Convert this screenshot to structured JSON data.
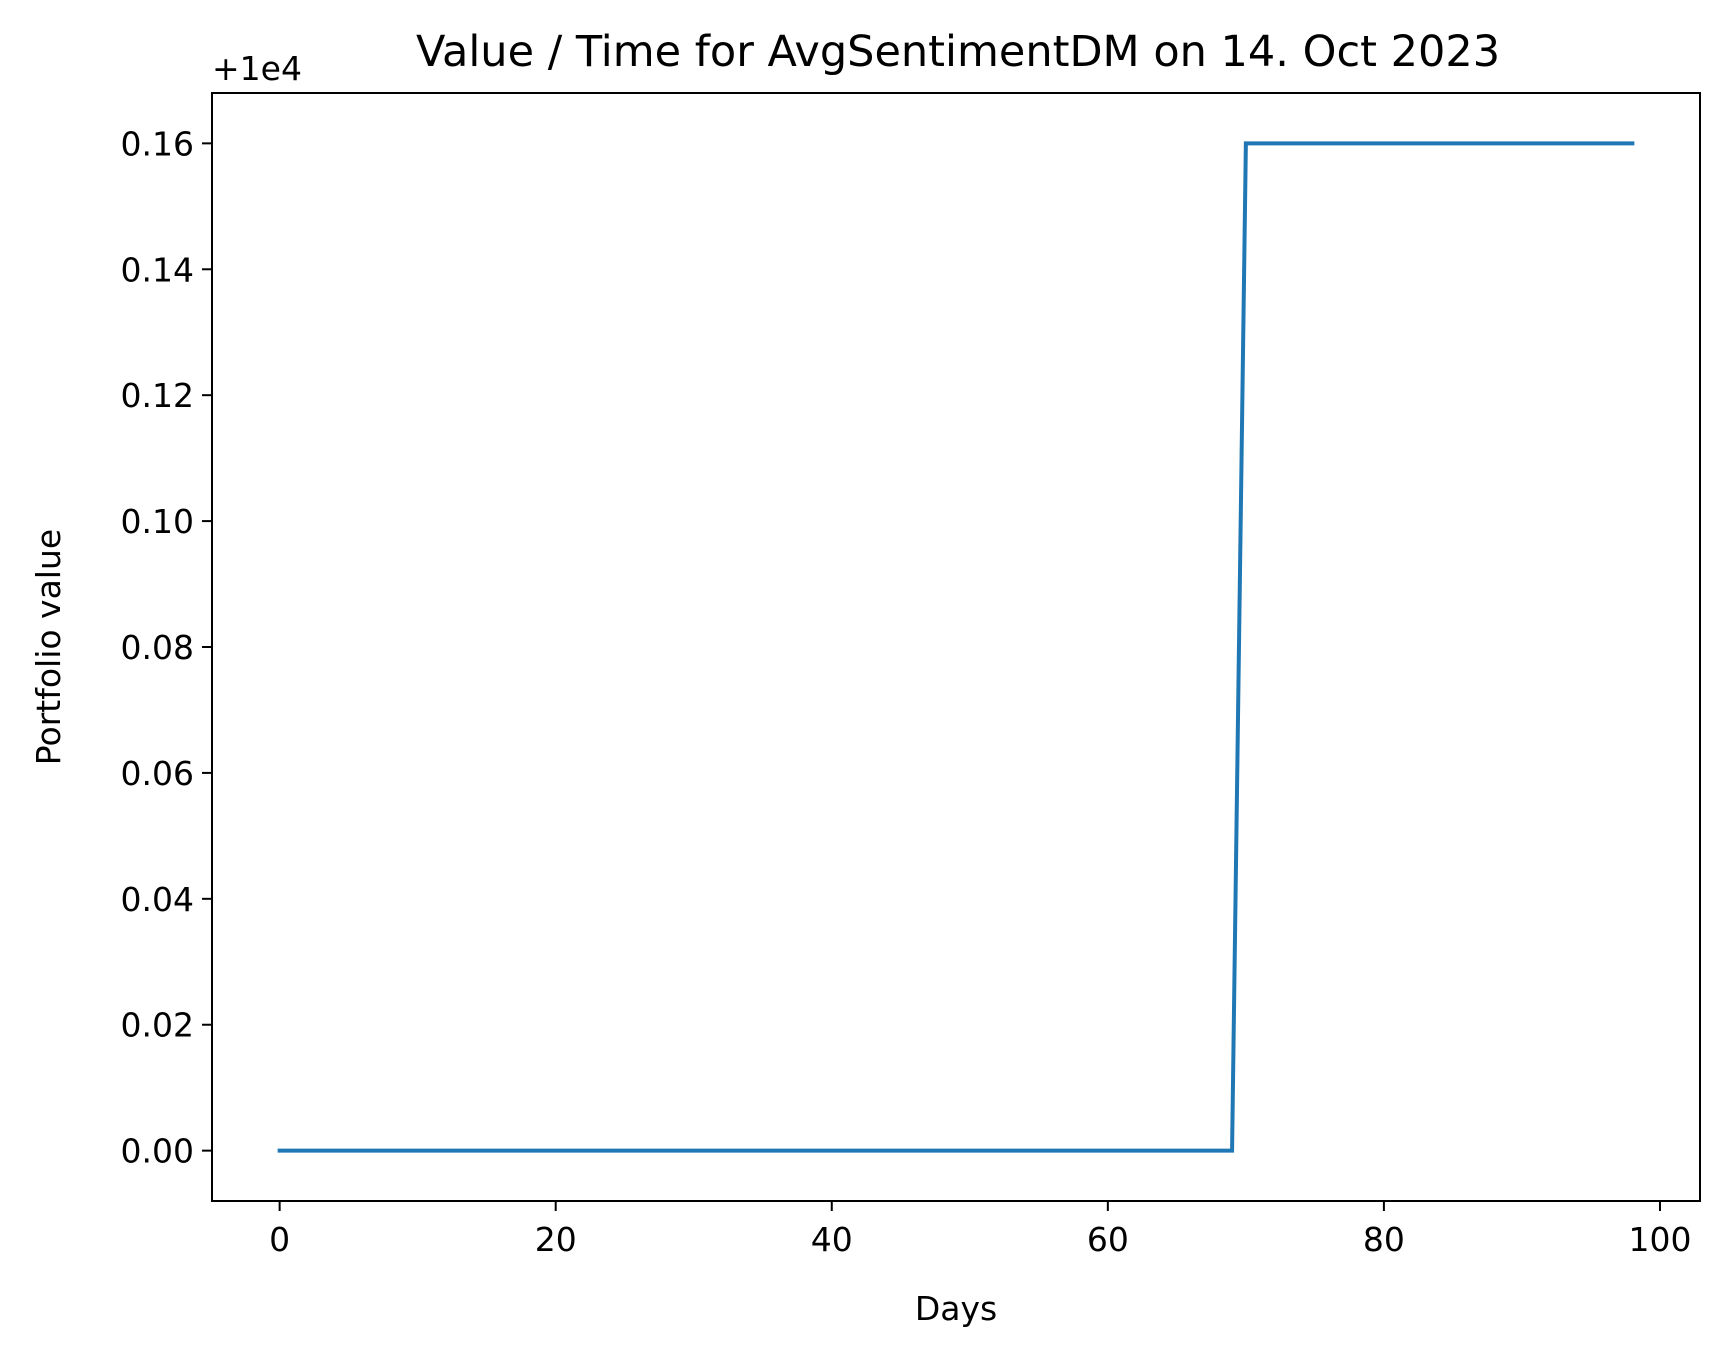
{
  "chart_data": {
    "type": "line",
    "title": "Value / Time for AvgSentimentDM on 14. Oct 2023",
    "xlabel": "Days",
    "ylabel": "Portfolio value",
    "y_offset_label": "+1e4",
    "xlim": [
      -4.9,
      102.9
    ],
    "ylim": [
      -0.008,
      0.168
    ],
    "x_ticks": [
      0,
      20,
      40,
      60,
      80,
      100
    ],
    "x_tick_labels": [
      "0",
      "20",
      "40",
      "60",
      "80",
      "100"
    ],
    "y_ticks": [
      0.0,
      0.02,
      0.04,
      0.06,
      0.08,
      0.1,
      0.12,
      0.14,
      0.16
    ],
    "y_tick_labels": [
      "0.00",
      "0.02",
      "0.04",
      "0.06",
      "0.08",
      "0.10",
      "0.12",
      "0.14",
      "0.16"
    ],
    "grid": false,
    "legend": "none",
    "line_color": "#1f77b4",
    "x": [
      0,
      69,
      70,
      98
    ],
    "y": [
      0.0,
      0.0,
      0.16,
      0.16
    ]
  }
}
